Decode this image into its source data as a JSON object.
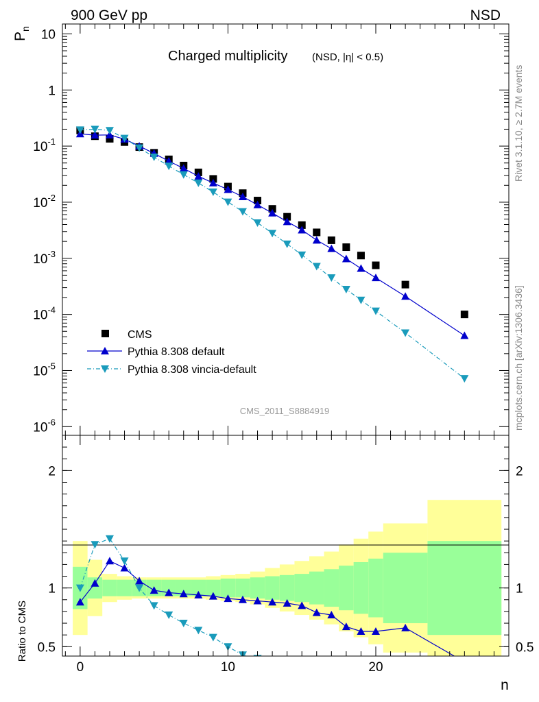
{
  "header": {
    "left": "900 GeV pp",
    "right": "NSD"
  },
  "side_labels": {
    "upper": "Rivet 3.1.10, ≥ 2.7M events",
    "lower": "mcplots.cern.ch [arXiv:1306.3436]"
  },
  "chart_data": [
    {
      "type": "scatter",
      "panel": "main",
      "title": "Charged multiplicity",
      "subtitle": "(NSD, |η| < 0.5)",
      "watermark": "CMS_2011_S8884919",
      "xlabel": "n",
      "ylabel": "P_n",
      "yscale": "log",
      "xlim": [
        -1.2,
        29
      ],
      "ylim": [
        7e-07,
        15
      ],
      "y_tick_labels": [
        "10",
        "1",
        "10^-1",
        "10^-2",
        "10^-3",
        "10^-4",
        "10^-5",
        "10^-6"
      ],
      "legend_position": "bottom-left",
      "series": [
        {
          "name": "CMS",
          "color": "#000000",
          "marker": "square",
          "x": [
            0,
            1,
            2,
            3,
            4,
            5,
            6,
            7,
            8,
            9,
            10,
            11,
            12,
            13,
            14,
            15,
            16,
            17,
            18,
            19,
            20,
            22,
            26
          ],
          "y": [
            0.19,
            0.15,
            0.135,
            0.118,
            0.096,
            0.076,
            0.058,
            0.045,
            0.034,
            0.026,
            0.019,
            0.0145,
            0.0107,
            0.0076,
            0.0055,
            0.0039,
            0.0029,
            0.0021,
            0.00158,
            0.00112,
            0.00075,
            0.00034,
            0.0001
          ]
        },
        {
          "name": "Pythia 8.308 default",
          "color": "#0000cc",
          "marker": "triangle-up",
          "line": "solid",
          "x": [
            0,
            1,
            2,
            3,
            4,
            5,
            6,
            7,
            8,
            9,
            10,
            11,
            12,
            13,
            14,
            15,
            16,
            17,
            18,
            19,
            20,
            22,
            26
          ],
          "y": [
            0.165,
            0.157,
            0.158,
            0.133,
            0.1,
            0.074,
            0.054,
            0.04,
            0.029,
            0.022,
            0.0168,
            0.0125,
            0.009,
            0.0064,
            0.0045,
            0.0032,
            0.0021,
            0.00149,
            0.00098,
            0.00066,
            0.00045,
            0.00021,
            4.2e-05
          ]
        },
        {
          "name": "Pythia 8.308 vincia-default",
          "color": "#1a9bbb",
          "marker": "triangle-down",
          "line": "dash-dot",
          "x": [
            0,
            1,
            2,
            3,
            4,
            5,
            6,
            7,
            8,
            9,
            10,
            11,
            12,
            13,
            14,
            15,
            16,
            17,
            18,
            19,
            20,
            22,
            26
          ],
          "y": [
            0.195,
            0.2,
            0.19,
            0.138,
            0.093,
            0.064,
            0.044,
            0.031,
            0.022,
            0.0152,
            0.0101,
            0.0068,
            0.0043,
            0.0028,
            0.0018,
            0.00115,
            0.00072,
            0.00045,
            0.00028,
            0.00018,
            0.000115,
            4.7e-05,
            7.2e-06
          ]
        }
      ]
    },
    {
      "type": "line",
      "panel": "ratio",
      "xlabel": "n",
      "ylabel": "Ratio to CMS",
      "xlim": [
        -1.2,
        29
      ],
      "ylim": [
        0.42,
        2.3
      ],
      "x_ticks": [
        0,
        10,
        20
      ],
      "y_ticks": [
        0.5,
        1,
        2
      ],
      "reference_line": 1,
      "bands": {
        "edges": [
          -0.5,
          0.5,
          1.5,
          2.5,
          3.5,
          4.5,
          5.5,
          6.5,
          7.5,
          8.5,
          9.5,
          10.5,
          11.5,
          12.5,
          13.5,
          14.5,
          15.5,
          16.5,
          17.5,
          18.5,
          19.5,
          20.5,
          23.5,
          28.5
        ],
        "stat_color": "#99ff99",
        "syst_color": "#ffff99",
        "stat_halfwidth": [
          0.18,
          0.09,
          0.07,
          0.07,
          0.07,
          0.07,
          0.07,
          0.07,
          0.07,
          0.07,
          0.08,
          0.08,
          0.09,
          0.1,
          0.11,
          0.12,
          0.14,
          0.16,
          0.19,
          0.22,
          0.25,
          0.3,
          0.4,
          0.45
        ],
        "total_halfwidth": [
          0.4,
          0.24,
          0.12,
          0.1,
          0.09,
          0.09,
          0.09,
          0.09,
          0.09,
          0.1,
          0.11,
          0.12,
          0.14,
          0.17,
          0.2,
          0.23,
          0.27,
          0.31,
          0.37,
          0.42,
          0.48,
          0.55,
          0.75,
          0.9
        ]
      },
      "series": [
        {
          "name": "Pythia 8.308 default",
          "color": "#0000cc",
          "marker": "triangle-up",
          "line": "solid",
          "x": [
            0,
            1,
            2,
            3,
            4,
            5,
            6,
            7,
            8,
            9,
            10,
            11,
            12,
            13,
            14,
            15,
            16,
            17,
            18,
            19,
            20,
            22,
            26
          ],
          "y": [
            0.88,
            1.04,
            1.23,
            1.17,
            1.06,
            0.98,
            0.96,
            0.95,
            0.94,
            0.93,
            0.91,
            0.9,
            0.89,
            0.88,
            0.87,
            0.85,
            0.79,
            0.77,
            0.67,
            0.63,
            0.63,
            0.66,
            0.37
          ]
        },
        {
          "name": "Pythia 8.308 vincia-default",
          "color": "#1a9bbb",
          "marker": "triangle-down",
          "line": "dash-dot",
          "x": [
            0,
            1,
            2,
            3,
            4,
            5,
            6,
            7,
            8,
            9,
            10,
            11,
            12
          ],
          "y": [
            1.0,
            1.37,
            1.42,
            1.23,
            1.0,
            0.85,
            0.77,
            0.7,
            0.64,
            0.58,
            0.5,
            0.43,
            0.4
          ]
        }
      ]
    }
  ]
}
